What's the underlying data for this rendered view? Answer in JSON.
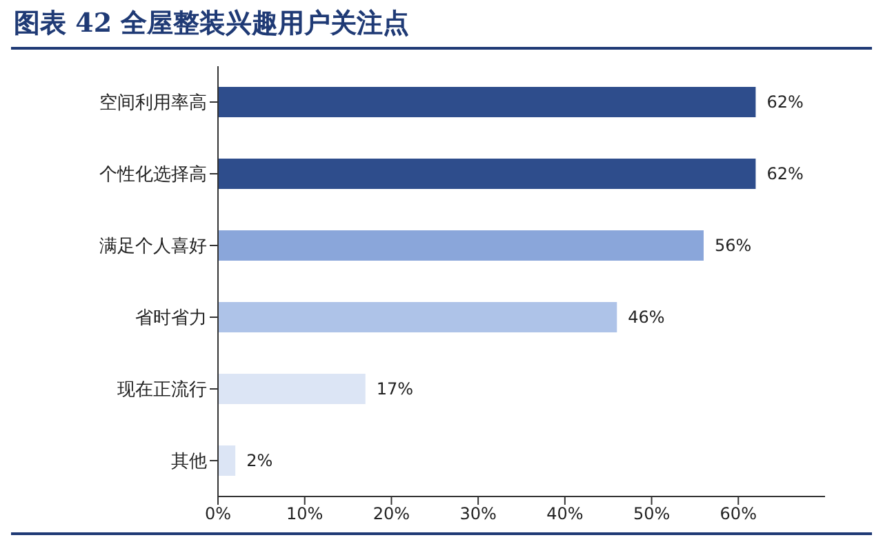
{
  "chart_data": {
    "type": "bar",
    "orientation": "horizontal",
    "title": "图表 42  全屋整装兴趣用户关注点",
    "categories": [
      "空间利用率高",
      "个性化选择高",
      "满足个人喜好",
      "省时省力",
      "现在正流行",
      "其他"
    ],
    "values": [
      62,
      62,
      56,
      46,
      17,
      2
    ],
    "colors": [
      "#2e4d8c",
      "#2e4d8c",
      "#8aa6da",
      "#aec3e8",
      "#dce5f5",
      "#dce5f5"
    ],
    "value_labels": [
      "62%",
      "62%",
      "56%",
      "46%",
      "17%",
      "2%"
    ],
    "xlim": [
      0,
      70
    ],
    "xticks": [
      {
        "value": 0,
        "label": "0%"
      },
      {
        "value": 10,
        "label": "10%"
      },
      {
        "value": 20,
        "label": "20%"
      },
      {
        "value": 30,
        "label": "30%"
      },
      {
        "value": 40,
        "label": "40%"
      },
      {
        "value": 50,
        "label": "50%"
      },
      {
        "value": 60,
        "label": "60%"
      }
    ],
    "grid": false,
    "legend": false
  }
}
